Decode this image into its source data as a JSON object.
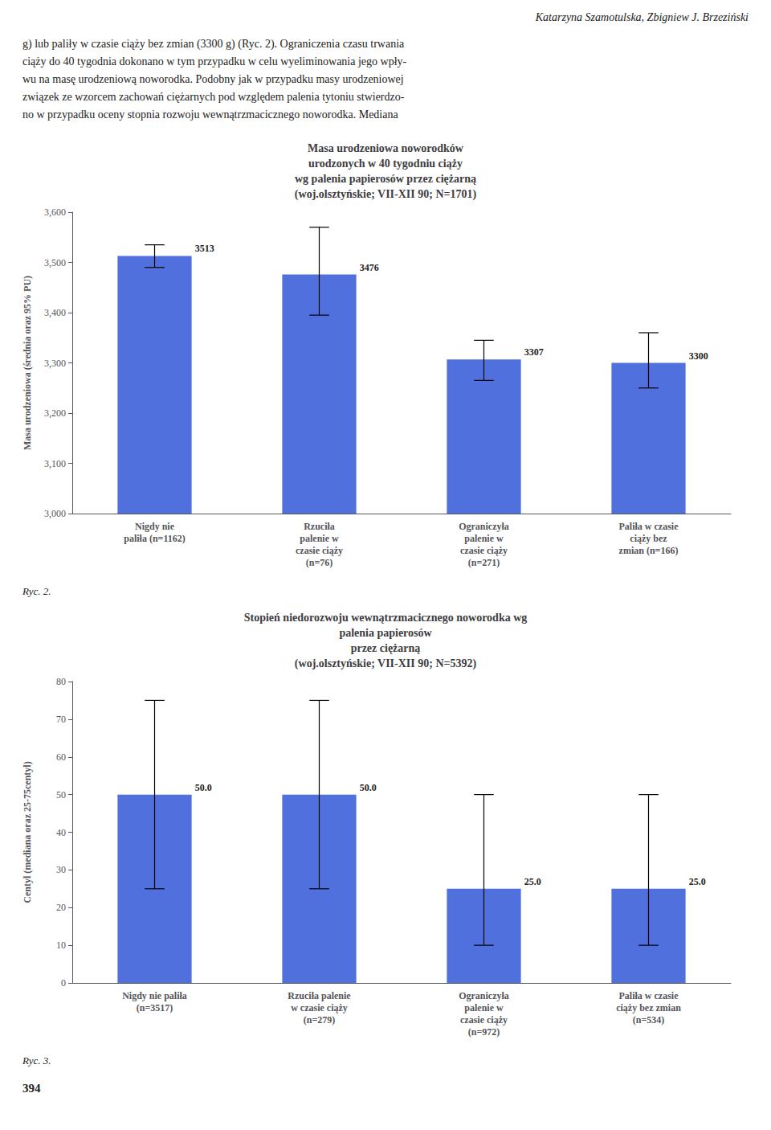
{
  "header_text": "Katarzyna Szamotulska, Zbigniew J. Brzeziński",
  "intro_lines": [
    "g) lub paliły w czasie ciąży bez zmian (3300 g) (Ryc. 2). Ograniczenia czasu trwania",
    "ciąży do 40 tygodnia dokonano w tym przypadku w celu wyeliminowania jego wpły-",
    "wu na masę urodzeniową noworodka. Podobny jak w przypadku masy urodzeniowej",
    "związek ze wzorcem zachowań ciężarnych pod względem palenia tytoniu stwierdzo-",
    "no w przypadku oceny stopnia rozwoju wewnątrzmacicznego noworodka. Mediana"
  ],
  "page_number": "394",
  "chart_data": [
    {
      "type": "bar",
      "title": "Masa urodzeniowa noworodków\nurodzonych w 40 tygodniu ciąży\nwg palenia papierosów przez ciężarną\n(woj.olsztyńskie; VII-XII 90; N=1701)",
      "ylabel": "Masa urodzeniowa (średnia oraz 95% PU)",
      "categories": [
        "Nigdy nie\npaliła (n=1162)",
        "Rzuciła\npalenie w\nczasie ciąży\n(n=76)",
        "Ograniczyła\npalenie w\nczasie ciąży\n(n=271)",
        "Paliła w czasie\nciąży bez\nzmian (n=166)"
      ],
      "values": [
        3513,
        3476,
        3307,
        3300
      ],
      "error_low": [
        3490,
        3395,
        3265,
        3250
      ],
      "error_high": [
        3535,
        3570,
        3345,
        3360
      ],
      "ylim": [
        3000,
        3600
      ],
      "yticks": [
        3000,
        3100,
        3200,
        3300,
        3400,
        3500,
        3600
      ],
      "grid": false,
      "data_labels": true,
      "caption": "Ryc. 2."
    },
    {
      "type": "bar",
      "title": "Stopień niedorozwoju wewnątrzmacicznego noworodka wg\npalenia papierosów\nprzez ciężarną\n(woj.olsztyńskie; VII-XII 90; N=5392)",
      "ylabel": "Centyl (mediana oraz 25-75centyl)",
      "categories": [
        "Nigdy nie paliła\n(n=3517)",
        "Rzuciła palenie\nw czasie ciąży\n(n=279)",
        "Ograniczyła\npalenie w\nczasie ciąży\n(n=972)",
        "Paliła w czasie\nciąży bez zmian\n(n=534)"
      ],
      "values": [
        50.0,
        50.0,
        25.0,
        25.0
      ],
      "value_labels": [
        "50.0",
        "50.0",
        "25.0",
        "25.0"
      ],
      "error_low": [
        25.0,
        25.0,
        10.0,
        10.0
      ],
      "error_high": [
        75.0,
        75.0,
        50.0,
        50.0
      ],
      "ylim": [
        0,
        80
      ],
      "yticks": [
        0,
        10,
        20,
        30,
        40,
        50,
        60,
        70,
        80
      ],
      "grid": false,
      "data_labels": true,
      "caption": "Ryc. 3."
    }
  ]
}
